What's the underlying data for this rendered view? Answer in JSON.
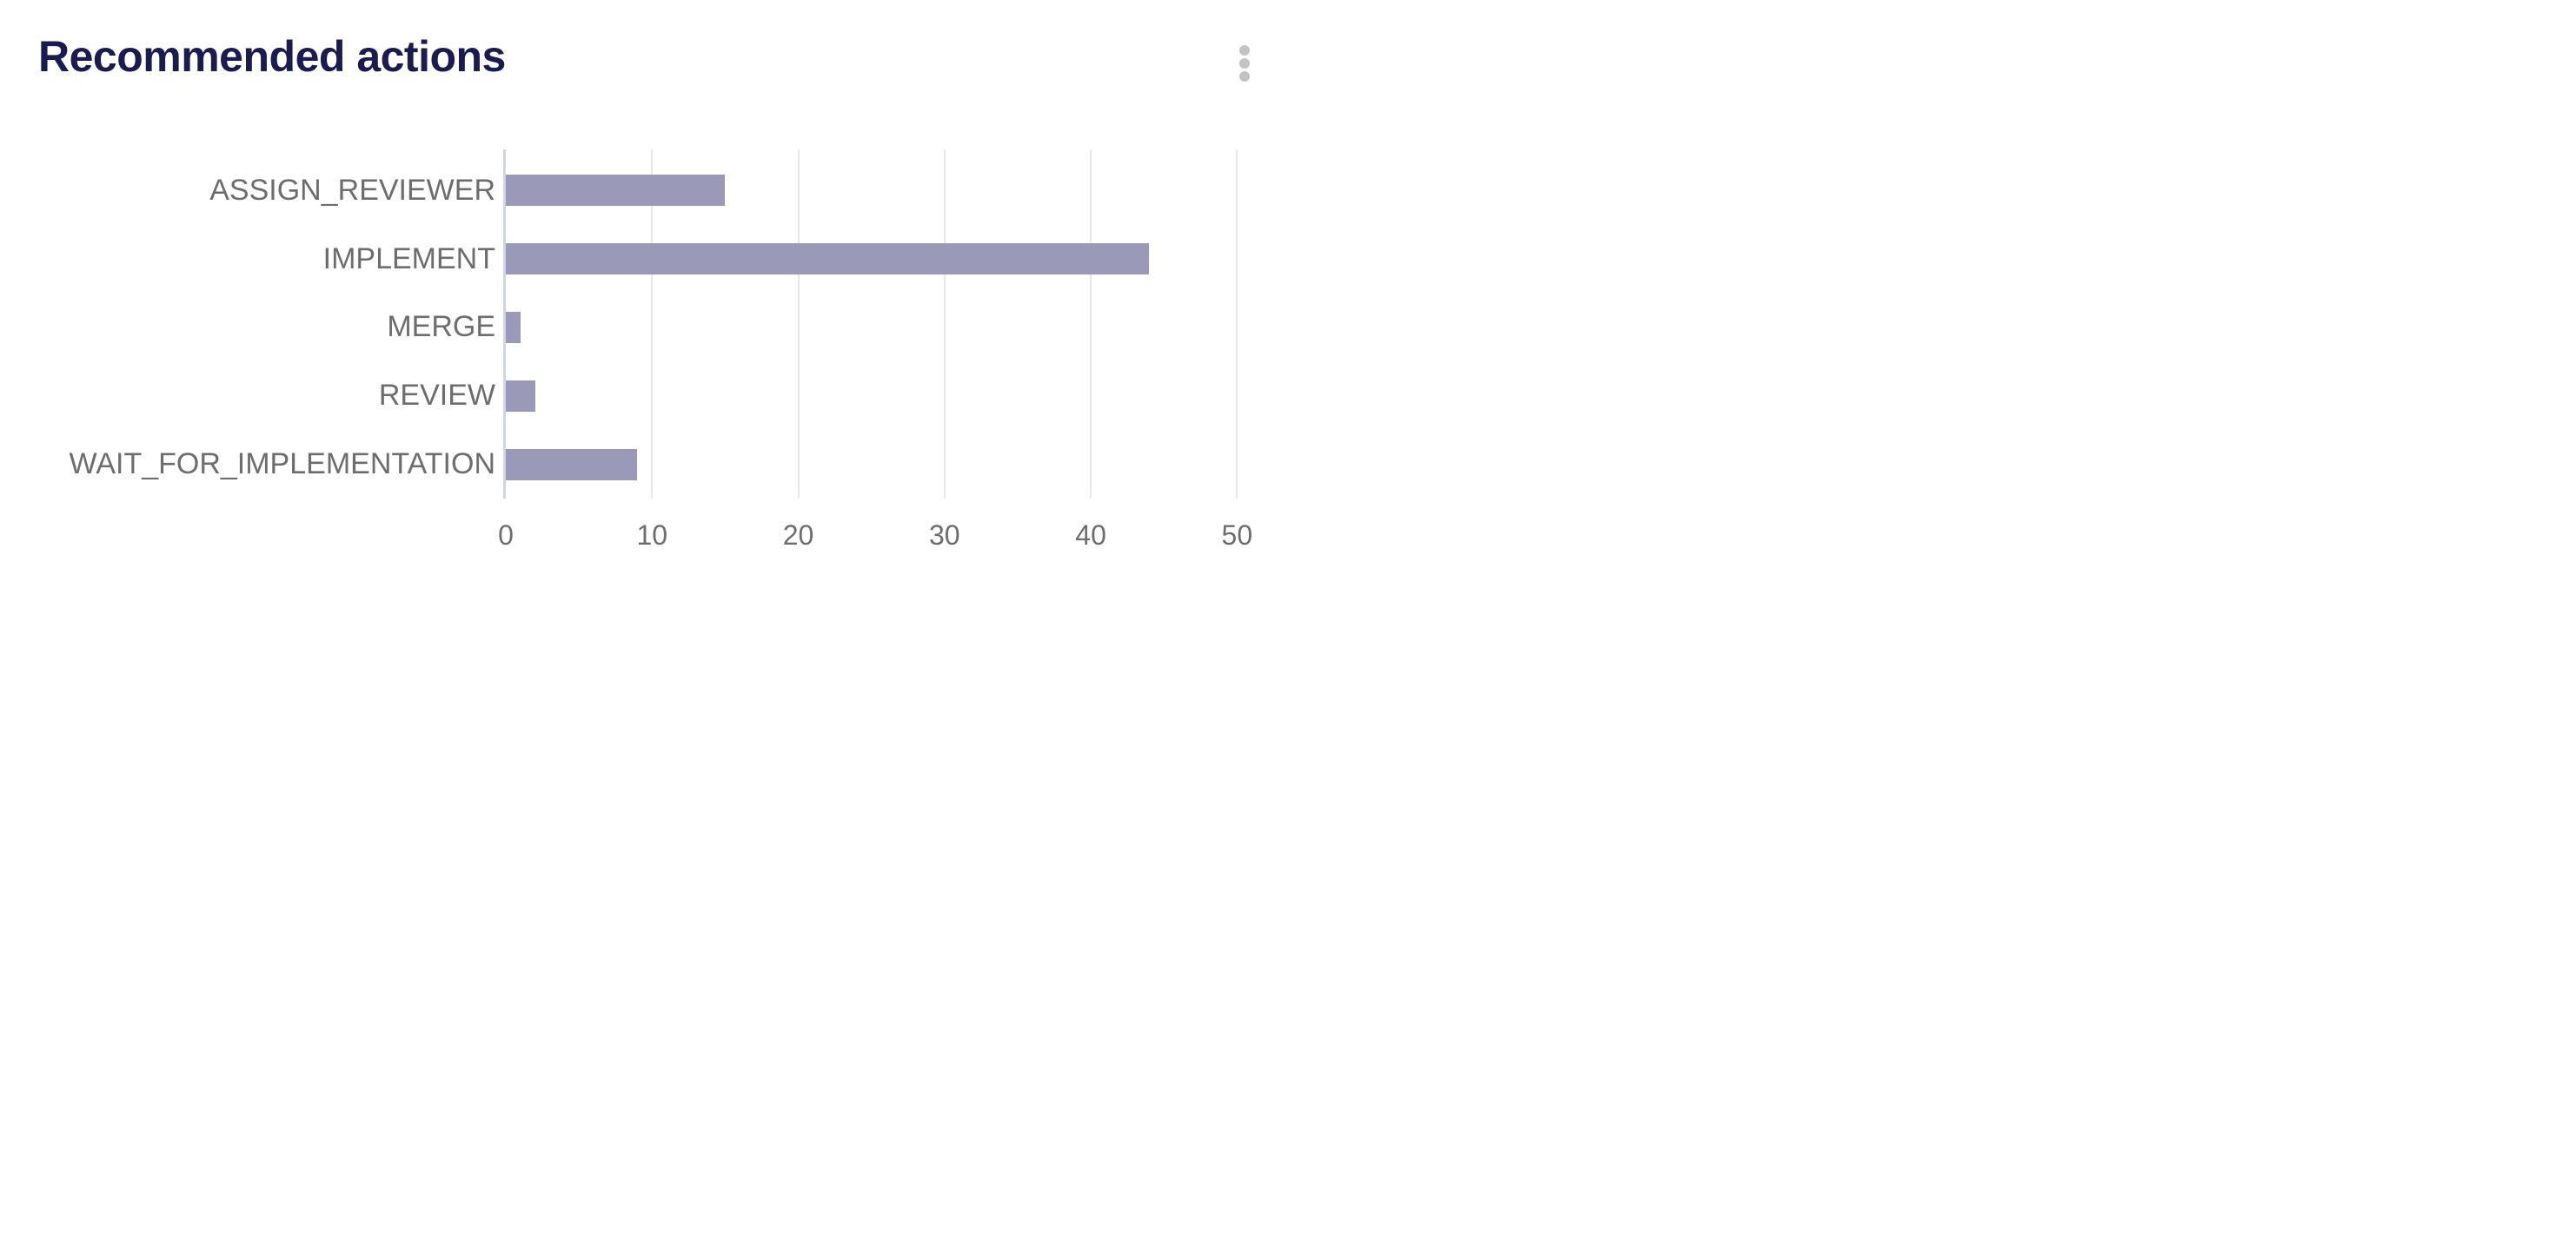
{
  "header": {
    "title": "Recommended actions",
    "menu": {
      "icon": "kebab-menu"
    }
  },
  "chart_data": {
    "type": "bar",
    "orientation": "horizontal",
    "title": "Recommended actions",
    "categories": [
      "ASSIGN_REVIEWER",
      "IMPLEMENT",
      "MERGE",
      "REVIEW",
      "WAIT_FOR_IMPLEMENTATION"
    ],
    "values": [
      15,
      44,
      1,
      2,
      9
    ],
    "xlabel": "",
    "ylabel": "",
    "xlim": [
      0,
      52
    ],
    "xticks": [
      0,
      10,
      20,
      30,
      40,
      50
    ],
    "grid": true,
    "legend": false,
    "colors": {
      "bar": "#9a9ab8",
      "axis_line": "#cbd6ea",
      "gridline": "#e8e8e8",
      "category_label": "#6d6d6d",
      "tick_label": "#6d6d6d",
      "title": "#191c51",
      "menu_dots": "#c3c3c3",
      "background": "#ffffff"
    }
  }
}
